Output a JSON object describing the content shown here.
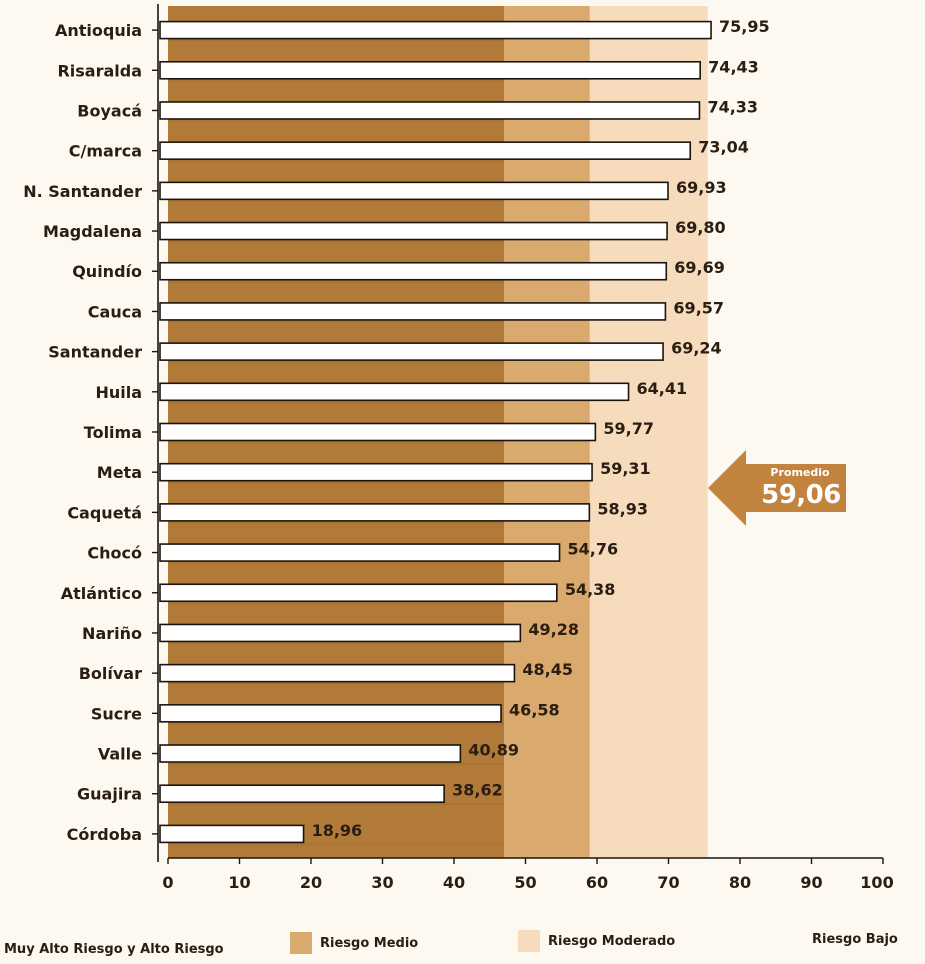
{
  "chart_data": {
    "type": "bar",
    "orientation": "horizontal",
    "categories": [
      "Antioquia",
      "Risaralda",
      "Boyacá",
      "C/marca",
      "N. Santander",
      "Magdalena",
      "Quindío",
      "Cauca",
      "Santander",
      "Huila",
      "Tolima",
      "Meta",
      "Caquetá",
      "Chocó",
      "Atlántico",
      "Nariño",
      "Bolívar",
      "Sucre",
      "Valle",
      "Guajira",
      "Córdoba"
    ],
    "values": [
      75.95,
      74.43,
      74.33,
      73.04,
      69.93,
      69.8,
      69.69,
      69.57,
      69.24,
      64.41,
      59.77,
      59.31,
      58.93,
      54.76,
      54.38,
      49.28,
      48.45,
      46.58,
      40.89,
      38.62,
      18.96
    ],
    "value_labels": [
      "75,95",
      "74,43",
      "74,33",
      "73,04",
      "69,93",
      "69,80",
      "69,69",
      "69,57",
      "69,24",
      "64,41",
      "59,77",
      "59,31",
      "58,93",
      "54,76",
      "54,38",
      "49,28",
      "48,45",
      "46,58",
      "40,89",
      "38,62",
      "18,96"
    ],
    "xlim": [
      0,
      100
    ],
    "xticks": [
      "0",
      "10",
      "20",
      "30",
      "40",
      "50",
      "60",
      "70",
      "80",
      "90",
      "100"
    ],
    "risk_bands": [
      {
        "name": "Muy Alto Riesgo y Alto Riesgo",
        "from": 0,
        "to": 47,
        "color": "#b27a38"
      },
      {
        "name": "Riesgo Medio",
        "from": 47,
        "to": 59,
        "color": "#d9a96e"
      },
      {
        "name": "Riesgo Moderado",
        "from": 59,
        "to": 75.5,
        "color": "#f6dcbd"
      },
      {
        "name": "Riesgo Bajo",
        "from": 75.5,
        "to": 100,
        "color": "#fdf9f1"
      }
    ],
    "average": {
      "title": "Promedio",
      "value": 59.06,
      "label": "59,06"
    },
    "legend_position": "bottom",
    "grid": false
  },
  "legend": [
    {
      "label": "Muy Alto Riesgo y Alto Riesgo",
      "color": "#b27a38"
    },
    {
      "label": "Riesgo Medio",
      "color": "#d9a96e"
    },
    {
      "label": "Riesgo Moderado",
      "color": "#f6dcbd"
    },
    {
      "label": "Riesgo Bajo",
      "color": "#fdf9f1"
    }
  ],
  "callout": {
    "title": "Promedio",
    "value": "59,06",
    "color": "#c2833f"
  }
}
